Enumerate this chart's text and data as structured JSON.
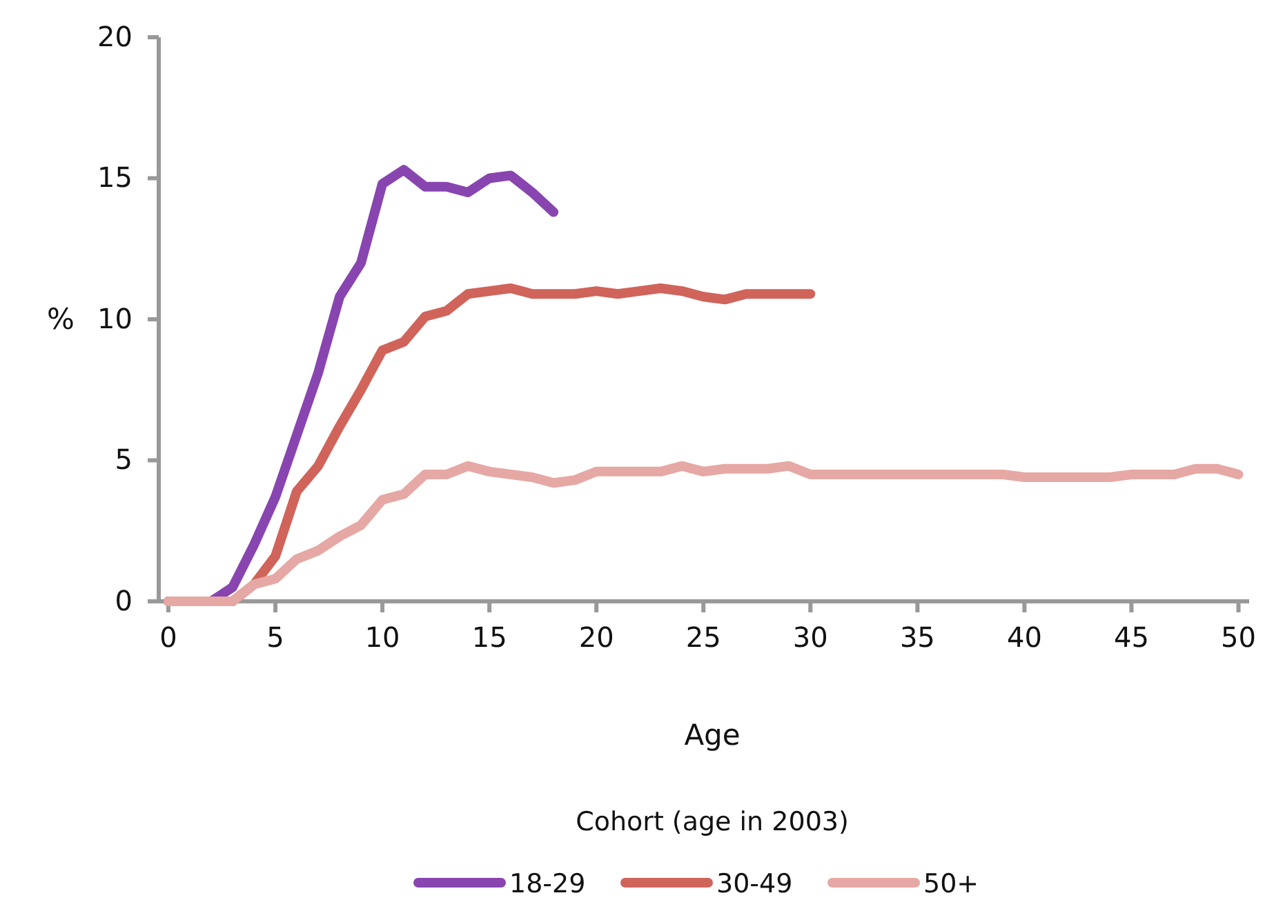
{
  "chart_data": {
    "type": "line",
    "xlabel": "Age",
    "ylabel": "%",
    "legend_title": "Cohort (age in 2003)",
    "legend": "bottom",
    "line_style": "solid",
    "marker": "none",
    "xlim": [
      -0.45,
      50.5
    ],
    "xticks": [
      0,
      5,
      10,
      15,
      20,
      25,
      30,
      35,
      40,
      45,
      50
    ],
    "ylim": [
      0,
      20
    ],
    "yticks": [
      0,
      5,
      10,
      15,
      20
    ],
    "series": [
      {
        "name": "18-29",
        "color": "#8845b0",
        "x": [
          0,
          1,
          2,
          3,
          4,
          5,
          6,
          7,
          8,
          9,
          10,
          11,
          12,
          13,
          14,
          15,
          16,
          17,
          18
        ],
        "values": [
          0,
          0,
          0,
          0.5,
          2,
          3.7,
          5.9,
          8.1,
          10.8,
          12,
          14.8,
          15.3,
          14.7,
          14.7,
          14.5,
          15,
          15.1,
          14.5,
          13.8
        ]
      },
      {
        "name": "30-49",
        "color": "#d0645a",
        "x": [
          0,
          1,
          2,
          3,
          4,
          5,
          6,
          7,
          8,
          9,
          10,
          11,
          12,
          13,
          14,
          15,
          16,
          17,
          18,
          19,
          20,
          21,
          22,
          23,
          24,
          25,
          26,
          27,
          28,
          29,
          30
        ],
        "values": [
          0,
          0,
          0,
          0,
          0.6,
          1.6,
          3.9,
          4.8,
          6.2,
          7.5,
          8.9,
          9.2,
          10.1,
          10.3,
          10.9,
          11,
          11.1,
          10.9,
          10.9,
          10.9,
          11,
          10.9,
          11,
          11.1,
          11,
          10.8,
          10.7,
          10.9,
          10.9,
          10.9,
          10.9
        ]
      },
      {
        "name": "50+",
        "color": "#e6a8a4",
        "x": [
          0,
          1,
          2,
          3,
          4,
          5,
          6,
          7,
          8,
          9,
          10,
          11,
          12,
          13,
          14,
          15,
          16,
          17,
          18,
          19,
          20,
          21,
          22,
          23,
          24,
          25,
          26,
          27,
          28,
          29,
          30,
          31,
          32,
          33,
          34,
          35,
          36,
          37,
          38,
          39,
          40,
          41,
          42,
          43,
          44,
          45,
          46,
          47,
          48,
          49,
          50
        ],
        "values": [
          0,
          0,
          0,
          0,
          0.6,
          0.8,
          1.5,
          1.8,
          2.3,
          2.7,
          3.6,
          3.8,
          4.5,
          4.5,
          4.8,
          4.6,
          4.5,
          4.4,
          4.2,
          4.3,
          4.6,
          4.6,
          4.6,
          4.6,
          4.8,
          4.6,
          4.7,
          4.7,
          4.7,
          4.8,
          4.5,
          4.5,
          4.5,
          4.5,
          4.5,
          4.5,
          4.5,
          4.5,
          4.5,
          4.5,
          4.4,
          4.4,
          4.4,
          4.4,
          4.4,
          4.5,
          4.5,
          4.5,
          4.7,
          4.7,
          4.5
        ]
      }
    ]
  }
}
